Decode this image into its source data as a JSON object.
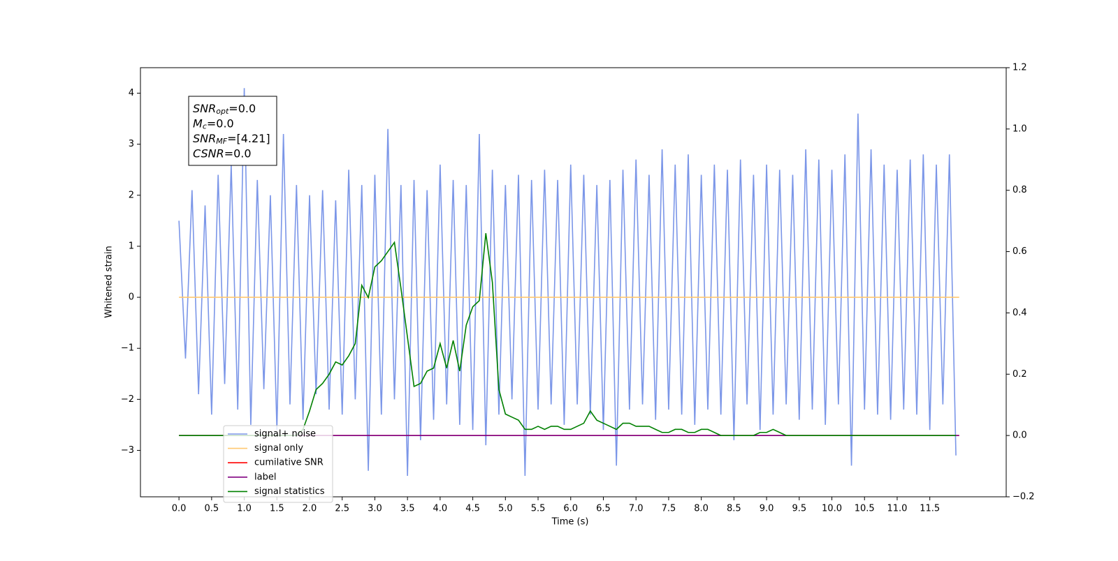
{
  "chart_data": {
    "type": "line",
    "xlabel": "Time (s)",
    "ylabel": "Whitened strain",
    "xlim": [
      -0.59,
      12.67
    ],
    "ylim": [
      -3.91,
      4.5
    ],
    "y2lim": [
      -0.2,
      1.2
    ],
    "xticks": [
      {
        "value": 0,
        "label": "0.0"
      },
      0.5,
      {
        "value": 1,
        "label": "1.0"
      },
      1.5,
      {
        "value": 2,
        "label": "2.0"
      },
      2.5,
      {
        "value": 3,
        "label": "3.0"
      },
      3.5,
      {
        "value": 4,
        "label": "4.0"
      },
      4.5,
      {
        "value": 5,
        "label": "5.0"
      },
      5.5,
      {
        "value": 6,
        "label": "6.0"
      },
      6.5,
      {
        "value": 7,
        "label": "7.0"
      },
      7.5,
      {
        "value": 8,
        "label": "8.0"
      },
      8.5,
      {
        "value": 9,
        "label": "9.0"
      },
      9.5,
      {
        "value": 10,
        "label": "10.0"
      },
      10.5,
      {
        "value": 11,
        "label": "11.0"
      },
      11.5
    ],
    "yticks": [
      {
        "value": -3,
        "label": "−3"
      },
      {
        "value": -2,
        "label": "−2"
      },
      {
        "value": -1,
        "label": "−1"
      },
      0,
      1,
      2,
      3,
      4
    ],
    "y2ticks": [
      {
        "value": -0.2,
        "label": "−0.2"
      },
      {
        "value": 0,
        "label": "0.0"
      },
      0.2,
      0.4,
      0.6,
      0.8,
      {
        "value": 1,
        "label": "1.0"
      },
      1.2
    ],
    "legend": "lower left",
    "annotation": [
      {
        "main": "SNR",
        "sub": "opt",
        "rest": "=0.0"
      },
      {
        "main": "M",
        "sub": "c",
        "rest": "=0.0"
      },
      {
        "main": "SNR",
        "sub": "MF",
        "rest": "=[4.21]"
      },
      {
        "main": "CSNR",
        "rest": "=0.0"
      }
    ],
    "x": [
      0,
      0.1,
      0.2,
      0.3,
      0.4,
      0.5,
      0.6,
      0.7,
      0.8,
      0.9,
      1,
      1.1,
      1.2,
      1.3,
      1.4,
      1.5,
      1.6,
      1.7,
      1.8,
      1.9,
      2,
      2.1,
      2.2,
      2.3,
      2.4,
      2.5,
      2.6,
      2.7,
      2.8,
      2.9,
      3,
      3.1,
      3.2,
      3.3,
      3.4,
      3.5,
      3.6,
      3.7,
      3.8,
      3.9,
      4,
      4.1,
      4.2,
      4.3,
      4.4,
      4.5,
      4.6,
      4.7,
      4.8,
      4.9,
      5,
      5.1,
      5.2,
      5.3,
      5.4,
      5.5,
      5.6,
      5.7,
      5.8,
      5.9,
      6,
      6.1,
      6.2,
      6.3,
      6.4,
      6.5,
      6.6,
      6.7,
      6.8,
      6.9,
      7,
      7.1,
      7.2,
      7.3,
      7.4,
      7.5,
      7.6,
      7.7,
      7.8,
      7.9,
      8,
      8.1,
      8.2,
      8.3,
      8.4,
      8.5,
      8.6,
      8.7,
      8.8,
      8.9,
      9,
      9.1,
      9.2,
      9.3,
      9.4,
      9.5,
      9.6,
      9.7,
      9.8,
      9.9,
      10,
      10.1,
      10.2,
      10.3,
      10.4,
      10.5,
      10.6,
      10.7,
      10.8,
      10.9,
      11,
      11.1,
      11.2,
      11.3,
      11.4,
      11.5,
      11.6,
      11.7,
      11.8,
      11.9
    ],
    "series": [
      {
        "name": "signal+ noise",
        "color": "#7b96e8",
        "values": [
          1.5,
          -1.2,
          2.1,
          -1.9,
          1.8,
          -2.3,
          2.4,
          -1.7,
          2.6,
          -2.2,
          4.1,
          -2.5,
          2.3,
          -1.8,
          2.0,
          -2.6,
          3.2,
          -2.1,
          2.2,
          -2.4,
          2.0,
          -1.9,
          2.1,
          -2.2,
          1.9,
          -2.3,
          2.5,
          -2.0,
          2.2,
          -3.4,
          2.4,
          -2.3,
          3.3,
          -2.0,
          2.2,
          -3.5,
          2.3,
          -2.8,
          2.1,
          -2.4,
          2.6,
          -2.1,
          2.3,
          -2.5,
          2.2,
          -2.6,
          3.2,
          -2.9,
          2.5,
          -2.3,
          2.2,
          -2.0,
          2.4,
          -3.5,
          2.3,
          -2.2,
          2.5,
          -2.1,
          2.3,
          -2.5,
          2.6,
          -2.1,
          2.4,
          -2.3,
          2.2,
          -2.6,
          2.3,
          -3.3,
          2.5,
          -2.2,
          2.7,
          -2.1,
          2.4,
          -2.4,
          2.9,
          -2.2,
          2.6,
          -2.3,
          2.8,
          -2.5,
          2.4,
          -2.2,
          2.6,
          -2.3,
          2.5,
          -2.8,
          2.7,
          -2.1,
          2.4,
          -2.6,
          2.6,
          -2.3,
          2.5,
          -2.1,
          2.4,
          -2.4,
          2.9,
          -2.2,
          2.7,
          -2.5,
          2.5,
          -2.1,
          2.8,
          -3.3,
          3.6,
          -2.2,
          2.9,
          -2.3,
          2.6,
          -2.4,
          2.5,
          -2.2,
          2.7,
          -2.3,
          2.8,
          -2.6,
          2.6,
          -2.1,
          2.8,
          -3.1
        ]
      },
      {
        "name": "signal only",
        "color": "#ffc870",
        "x": [
          0,
          11.95
        ],
        "values": [
          0,
          0
        ]
      },
      {
        "name": "cumilative SNR",
        "color": "#ff0000",
        "axis": "y2",
        "x": [
          0,
          11.95
        ],
        "values": [
          0,
          0
        ]
      },
      {
        "name": "label",
        "color": "#800080",
        "axis": "y2",
        "x": [
          0,
          11.95
        ],
        "values": [
          0,
          0
        ]
      },
      {
        "name": "signal statistics",
        "color": "#008000",
        "axis": "y2",
        "values": [
          0,
          0,
          0,
          0,
          0,
          0,
          0,
          0,
          0,
          0,
          0,
          0,
          0,
          0,
          0,
          0,
          0,
          0,
          0,
          0.02,
          0.08,
          0.15,
          0.17,
          0.2,
          0.24,
          0.23,
          0.26,
          0.3,
          0.49,
          0.45,
          0.55,
          0.57,
          0.6,
          0.63,
          0.48,
          0.32,
          0.16,
          0.17,
          0.21,
          0.22,
          0.3,
          0.22,
          0.31,
          0.21,
          0.36,
          0.42,
          0.44,
          0.66,
          0.5,
          0.15,
          0.07,
          0.06,
          0.05,
          0.02,
          0.02,
          0.03,
          0.02,
          0.03,
          0.03,
          0.02,
          0.02,
          0.03,
          0.04,
          0.08,
          0.05,
          0.04,
          0.03,
          0.02,
          0.04,
          0.04,
          0.03,
          0.03,
          0.03,
          0.02,
          0.01,
          0.01,
          0.02,
          0.02,
          0.01,
          0.01,
          0.02,
          0.02,
          0.01,
          0,
          0,
          0,
          0,
          0,
          0,
          0.01,
          0.01,
          0.02,
          0.01,
          0,
          0,
          0,
          0,
          0,
          0,
          0,
          0,
          0,
          0,
          0,
          0,
          0,
          0,
          0,
          0,
          0,
          0,
          0,
          0,
          0,
          0,
          0,
          0,
          0,
          0,
          0
        ]
      }
    ]
  }
}
